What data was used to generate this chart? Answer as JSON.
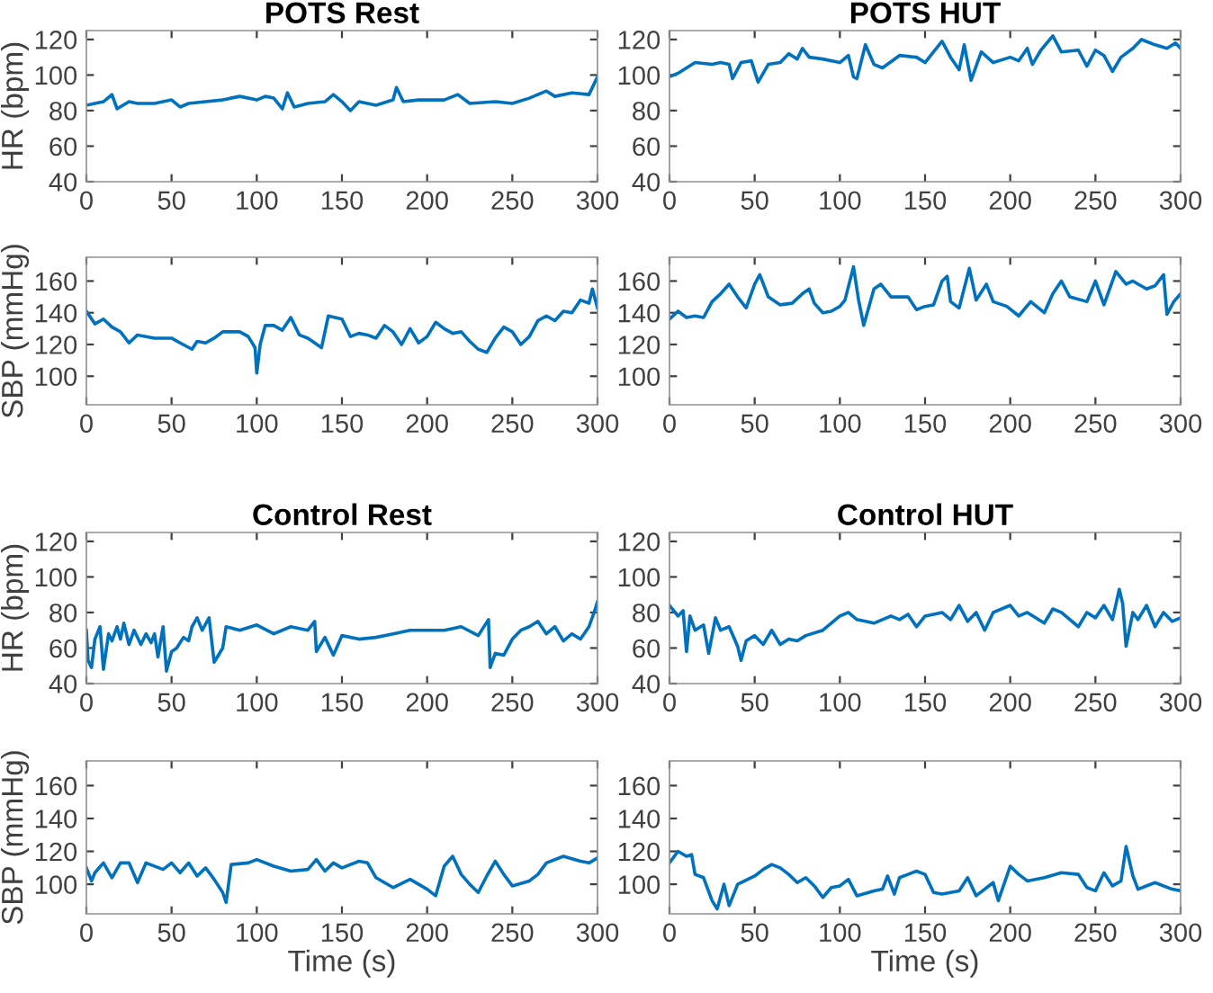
{
  "chart_data": [
    {
      "type": "line",
      "title": "POTS Rest",
      "ylabel": "HR (bpm)",
      "xlim": [
        0,
        300
      ],
      "xticks": [
        0,
        50,
        100,
        150,
        200,
        250,
        300
      ],
      "ylim": [
        40,
        125
      ],
      "yticks": [
        40,
        60,
        80,
        100,
        120
      ],
      "grid": false,
      "series": [
        {
          "color": "#0072bd",
          "x": [
            0,
            5,
            10,
            15,
            18,
            25,
            30,
            40,
            50,
            55,
            60,
            70,
            80,
            90,
            100,
            105,
            110,
            115,
            118,
            122,
            130,
            140,
            145,
            150,
            155,
            160,
            170,
            180,
            182,
            186,
            195,
            200,
            210,
            218,
            225,
            240,
            250,
            260,
            270,
            275,
            285,
            295,
            300
          ],
          "values": [
            83,
            84,
            85,
            89,
            81,
            85,
            84,
            84,
            86,
            82,
            84,
            85,
            86,
            88,
            86,
            88,
            87,
            81,
            90,
            82,
            84,
            85,
            89,
            85,
            80,
            85,
            83,
            86,
            93,
            85,
            86,
            86,
            86,
            89,
            84,
            85,
            84,
            87,
            91,
            88,
            90,
            89,
            99
          ]
        }
      ]
    },
    {
      "type": "line",
      "title": "POTS HUT",
      "xlim": [
        0,
        300
      ],
      "xticks": [
        0,
        50,
        100,
        150,
        200,
        250,
        300
      ],
      "ylim": [
        40,
        125
      ],
      "yticks": [
        40,
        60,
        80,
        100,
        120
      ],
      "grid": false,
      "series": [
        {
          "color": "#0072bd",
          "x": [
            0,
            5,
            10,
            15,
            25,
            30,
            35,
            37,
            42,
            48,
            52,
            58,
            65,
            70,
            75,
            78,
            82,
            90,
            100,
            105,
            108,
            110,
            115,
            120,
            125,
            135,
            145,
            150,
            155,
            160,
            165,
            170,
            173,
            177,
            183,
            190,
            200,
            205,
            210,
            213,
            218,
            225,
            230,
            240,
            245,
            250,
            255,
            260,
            265,
            272,
            277,
            285,
            292,
            297,
            300
          ],
          "values": [
            99,
            101,
            104,
            107,
            106,
            107,
            106,
            98,
            107,
            108,
            96,
            106,
            107,
            112,
            109,
            115,
            110,
            109,
            107,
            111,
            99,
            98,
            117,
            106,
            104,
            111,
            110,
            107,
            113,
            119,
            110,
            103,
            117,
            97,
            113,
            107,
            110,
            108,
            115,
            106,
            114,
            122,
            113,
            114,
            105,
            114,
            111,
            102,
            110,
            115,
            120,
            117,
            115,
            118,
            115
          ]
        }
      ]
    },
    {
      "type": "line",
      "ylabel": "SBP (mmHg)",
      "xlim": [
        0,
        300
      ],
      "xticks": [
        0,
        50,
        100,
        150,
        200,
        250,
        300
      ],
      "ylim": [
        82,
        175
      ],
      "yticks": [
        100,
        120,
        140,
        160
      ],
      "grid": false,
      "series": [
        {
          "color": "#0072bd",
          "x": [
            0,
            5,
            10,
            15,
            20,
            25,
            30,
            40,
            50,
            55,
            62,
            65,
            70,
            75,
            80,
            90,
            95,
            99,
            100,
            102,
            105,
            110,
            115,
            120,
            125,
            130,
            138,
            142,
            150,
            155,
            160,
            165,
            170,
            175,
            180,
            185,
            190,
            195,
            200,
            205,
            210,
            215,
            220,
            225,
            230,
            235,
            240,
            245,
            250,
            255,
            260,
            265,
            270,
            275,
            280,
            285,
            290,
            295,
            297,
            300
          ],
          "values": [
            141,
            133,
            136,
            131,
            128,
            121,
            126,
            124,
            124,
            121,
            117,
            122,
            121,
            124,
            128,
            128,
            125,
            118,
            102,
            120,
            132,
            132,
            129,
            137,
            126,
            124,
            118,
            138,
            136,
            125,
            127,
            126,
            124,
            132,
            128,
            120,
            130,
            121,
            125,
            134,
            130,
            127,
            128,
            122,
            117,
            115,
            124,
            131,
            128,
            120,
            125,
            135,
            138,
            135,
            141,
            140,
            148,
            146,
            155,
            143
          ]
        }
      ]
    },
    {
      "type": "line",
      "xlim": [
        0,
        300
      ],
      "xticks": [
        0,
        50,
        100,
        150,
        200,
        250,
        300
      ],
      "ylim": [
        82,
        175
      ],
      "yticks": [
        100,
        120,
        140,
        160
      ],
      "grid": false,
      "series": [
        {
          "color": "#0072bd",
          "x": [
            0,
            5,
            10,
            15,
            20,
            25,
            30,
            35,
            40,
            45,
            50,
            53,
            58,
            65,
            72,
            78,
            82,
            85,
            90,
            95,
            100,
            103,
            108,
            111,
            114,
            120,
            124,
            130,
            140,
            145,
            150,
            155,
            160,
            163,
            165,
            170,
            176,
            180,
            186,
            190,
            198,
            205,
            212,
            220,
            225,
            230,
            235,
            245,
            250,
            255,
            262,
            268,
            272,
            280,
            285,
            290,
            292,
            296,
            300
          ],
          "values": [
            136,
            141,
            137,
            138,
            137,
            147,
            152,
            158,
            150,
            143,
            158,
            164,
            150,
            145,
            146,
            152,
            155,
            146,
            140,
            141,
            144,
            148,
            169,
            148,
            132,
            155,
            158,
            150,
            150,
            142,
            144,
            145,
            160,
            163,
            147,
            143,
            168,
            148,
            158,
            147,
            144,
            138,
            147,
            140,
            152,
            160,
            150,
            147,
            160,
            145,
            166,
            158,
            160,
            155,
            157,
            164,
            139,
            147,
            152
          ]
        }
      ]
    },
    {
      "type": "line",
      "title": "Control Rest",
      "ylabel": "HR (bpm)",
      "xlim": [
        0,
        300
      ],
      "xticks": [
        0,
        50,
        100,
        150,
        200,
        250,
        300
      ],
      "ylim": [
        40,
        125
      ],
      "yticks": [
        40,
        60,
        80,
        100,
        120
      ],
      "grid": false,
      "series": [
        {
          "color": "#0072bd",
          "x": [
            0,
            1,
            3,
            5,
            8,
            10,
            13,
            15,
            18,
            20,
            22,
            25,
            28,
            32,
            35,
            38,
            40,
            42,
            45,
            47,
            50,
            53,
            57,
            60,
            62,
            65,
            68,
            72,
            75,
            80,
            82,
            90,
            100,
            110,
            120,
            130,
            134,
            135,
            140,
            145,
            150,
            160,
            170,
            180,
            190,
            200,
            210,
            220,
            230,
            236,
            237,
            240,
            245,
            250,
            255,
            260,
            265,
            270,
            275,
            280,
            285,
            290,
            295,
            298,
            300
          ],
          "values": [
            70,
            53,
            49,
            65,
            72,
            48,
            68,
            64,
            72,
            65,
            74,
            62,
            70,
            62,
            68,
            63,
            68,
            55,
            72,
            47,
            58,
            60,
            66,
            64,
            72,
            77,
            70,
            77,
            52,
            60,
            72,
            70,
            73,
            68,
            72,
            70,
            75,
            58,
            66,
            56,
            67,
            65,
            66,
            68,
            70,
            70,
            70,
            72,
            67,
            76,
            49,
            57,
            56,
            65,
            70,
            72,
            75,
            68,
            72,
            64,
            68,
            65,
            72,
            80,
            86
          ]
        }
      ]
    },
    {
      "type": "line",
      "title": "Control HUT",
      "xlim": [
        0,
        300
      ],
      "xticks": [
        0,
        50,
        100,
        150,
        200,
        250,
        300
      ],
      "ylim": [
        40,
        125
      ],
      "yticks": [
        40,
        60,
        80,
        100,
        120
      ],
      "grid": false,
      "series": [
        {
          "color": "#0072bd",
          "x": [
            0,
            5,
            8,
            10,
            12,
            15,
            20,
            23,
            27,
            30,
            35,
            40,
            42,
            45,
            50,
            55,
            60,
            65,
            70,
            75,
            80,
            90,
            100,
            105,
            110,
            120,
            130,
            135,
            140,
            145,
            150,
            160,
            165,
            170,
            175,
            180,
            185,
            190,
            200,
            205,
            210,
            220,
            225,
            230,
            240,
            245,
            250,
            255,
            260,
            264,
            266,
            268,
            272,
            275,
            280,
            285,
            290,
            295,
            300
          ],
          "values": [
            84,
            78,
            81,
            58,
            78,
            70,
            73,
            57,
            77,
            70,
            72,
            61,
            53,
            64,
            67,
            62,
            70,
            62,
            65,
            64,
            67,
            70,
            78,
            80,
            76,
            74,
            78,
            76,
            79,
            72,
            78,
            80,
            76,
            84,
            75,
            80,
            70,
            80,
            84,
            78,
            80,
            74,
            82,
            80,
            72,
            80,
            77,
            84,
            76,
            93,
            85,
            61,
            80,
            76,
            84,
            72,
            80,
            75,
            77
          ]
        }
      ]
    },
    {
      "type": "line",
      "ylabel": "SBP (mmHg)",
      "xlabel": "Time (s)",
      "xlim": [
        0,
        300
      ],
      "xticks": [
        0,
        50,
        100,
        150,
        200,
        250,
        300
      ],
      "ylim": [
        82,
        175
      ],
      "yticks": [
        100,
        120,
        140,
        160
      ],
      "grid": false,
      "series": [
        {
          "color": "#0072bd",
          "x": [
            0,
            3,
            5,
            10,
            15,
            20,
            25,
            30,
            35,
            45,
            50,
            55,
            60,
            65,
            70,
            75,
            80,
            82,
            85,
            95,
            100,
            110,
            120,
            130,
            135,
            140,
            145,
            150,
            160,
            165,
            170,
            175,
            180,
            190,
            200,
            205,
            210,
            215,
            220,
            225,
            230,
            235,
            240,
            245,
            250,
            260,
            265,
            270,
            280,
            290,
            295,
            300
          ],
          "values": [
            110,
            102,
            107,
            113,
            104,
            113,
            113,
            101,
            113,
            109,
            113,
            107,
            113,
            105,
            110,
            103,
            95,
            89,
            112,
            113,
            115,
            111,
            108,
            109,
            115,
            108,
            113,
            110,
            114,
            113,
            104,
            101,
            98,
            103,
            97,
            93,
            111,
            117,
            106,
            100,
            95,
            105,
            114,
            106,
            99,
            102,
            106,
            113,
            117,
            114,
            113,
            116
          ]
        }
      ]
    },
    {
      "type": "line",
      "xlabel": "Time (s)",
      "xlim": [
        0,
        300
      ],
      "xticks": [
        0,
        50,
        100,
        150,
        200,
        250,
        300
      ],
      "ylim": [
        82,
        175
      ],
      "yticks": [
        100,
        120,
        140,
        160
      ],
      "grid": false,
      "series": [
        {
          "color": "#0072bd",
          "x": [
            0,
            5,
            10,
            13,
            15,
            20,
            25,
            28,
            32,
            35,
            40,
            50,
            55,
            60,
            65,
            70,
            75,
            80,
            85,
            90,
            95,
            100,
            105,
            110,
            120,
            125,
            128,
            132,
            135,
            140,
            145,
            150,
            155,
            160,
            170,
            175,
            180,
            190,
            193,
            200,
            205,
            210,
            220,
            230,
            240,
            245,
            250,
            255,
            260,
            265,
            268,
            272,
            275,
            285,
            295,
            300
          ],
          "values": [
            113,
            120,
            117,
            118,
            106,
            104,
            90,
            85,
            100,
            87,
            100,
            105,
            109,
            112,
            110,
            106,
            101,
            104,
            99,
            92,
            98,
            99,
            103,
            93,
            96,
            97,
            105,
            94,
            104,
            106,
            108,
            106,
            95,
            94,
            96,
            104,
            93,
            101,
            90,
            111,
            106,
            102,
            104,
            107,
            106,
            98,
            96,
            107,
            99,
            102,
            123,
            105,
            97,
            101,
            97,
            96
          ]
        }
      ]
    }
  ]
}
